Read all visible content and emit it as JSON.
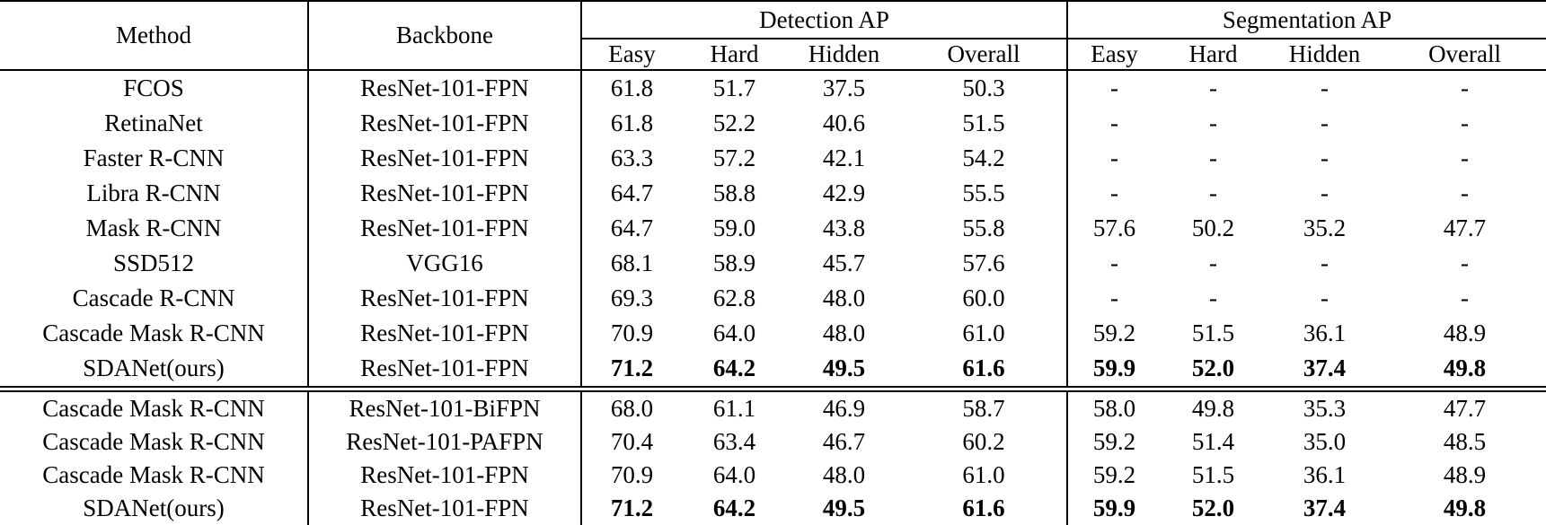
{
  "colors": {
    "text": "#000000",
    "background": "#ffffff",
    "rules": "#000000"
  },
  "table": {
    "headers": {
      "method": "Method",
      "backbone": "Backbone",
      "groups": [
        {
          "label": "Detection AP",
          "cols": [
            "Easy",
            "Hard",
            "Hidden",
            "Overall"
          ]
        },
        {
          "label": "Segmentation AP",
          "cols": [
            "Easy",
            "Hard",
            "Hidden",
            "Overall"
          ]
        }
      ]
    },
    "sections": [
      {
        "rows": [
          {
            "method": "FCOS",
            "backbone": "ResNet-101-FPN",
            "det": [
              "61.8",
              "51.7",
              "37.5",
              "50.3"
            ],
            "seg": [
              "-",
              "-",
              "-",
              "-"
            ],
            "bold": false
          },
          {
            "method": "RetinaNet",
            "backbone": "ResNet-101-FPN",
            "det": [
              "61.8",
              "52.2",
              "40.6",
              "51.5"
            ],
            "seg": [
              "-",
              "-",
              "-",
              "-"
            ],
            "bold": false
          },
          {
            "method": "Faster R-CNN",
            "backbone": "ResNet-101-FPN",
            "det": [
              "63.3",
              "57.2",
              "42.1",
              "54.2"
            ],
            "seg": [
              "-",
              "-",
              "-",
              "-"
            ],
            "bold": false
          },
          {
            "method": "Libra R-CNN",
            "backbone": "ResNet-101-FPN",
            "det": [
              "64.7",
              "58.8",
              "42.9",
              "55.5"
            ],
            "seg": [
              "-",
              "-",
              "-",
              "-"
            ],
            "bold": false
          },
          {
            "method": "Mask R-CNN",
            "backbone": "ResNet-101-FPN",
            "det": [
              "64.7",
              "59.0",
              "43.8",
              "55.8"
            ],
            "seg": [
              "57.6",
              "50.2",
              "35.2",
              "47.7"
            ],
            "bold": false
          },
          {
            "method": "SSD512",
            "backbone": "VGG16",
            "det": [
              "68.1",
              "58.9",
              "45.7",
              "57.6"
            ],
            "seg": [
              "-",
              "-",
              "-",
              "-"
            ],
            "bold": false
          },
          {
            "method": "Cascade R-CNN",
            "backbone": "ResNet-101-FPN",
            "det": [
              "69.3",
              "62.8",
              "48.0",
              "60.0"
            ],
            "seg": [
              "-",
              "-",
              "-",
              "-"
            ],
            "bold": false
          },
          {
            "method": "Cascade Mask R-CNN",
            "backbone": "ResNet-101-FPN",
            "det": [
              "70.9",
              "64.0",
              "48.0",
              "61.0"
            ],
            "seg": [
              "59.2",
              "51.5",
              "36.1",
              "48.9"
            ],
            "bold": false
          },
          {
            "method": "SDANet(ours)",
            "backbone": "ResNet-101-FPN",
            "det": [
              "71.2",
              "64.2",
              "49.5",
              "61.6"
            ],
            "seg": [
              "59.9",
              "52.0",
              "37.4",
              "49.8"
            ],
            "bold": true
          }
        ]
      },
      {
        "rows": [
          {
            "method": "Cascade Mask R-CNN",
            "backbone": "ResNet-101-BiFPN",
            "det": [
              "68.0",
              "61.1",
              "46.9",
              "58.7"
            ],
            "seg": [
              "58.0",
              "49.8",
              "35.3",
              "47.7"
            ],
            "bold": false
          },
          {
            "method": "Cascade Mask R-CNN",
            "backbone": "ResNet-101-PAFPN",
            "det": [
              "70.4",
              "63.4",
              "46.7",
              "60.2"
            ],
            "seg": [
              "59.2",
              "51.4",
              "35.0",
              "48.5"
            ],
            "bold": false
          },
          {
            "method": "Cascade Mask R-CNN",
            "backbone": "ResNet-101-FPN",
            "det": [
              "70.9",
              "64.0",
              "48.0",
              "61.0"
            ],
            "seg": [
              "59.2",
              "51.5",
              "36.1",
              "48.9"
            ],
            "bold": false
          },
          {
            "method": "SDANet(ours)",
            "backbone": "ResNet-101-FPN",
            "det": [
              "71.2",
              "64.2",
              "49.5",
              "61.6"
            ],
            "seg": [
              "59.9",
              "52.0",
              "37.4",
              "49.8"
            ],
            "bold": true
          }
        ]
      }
    ]
  }
}
